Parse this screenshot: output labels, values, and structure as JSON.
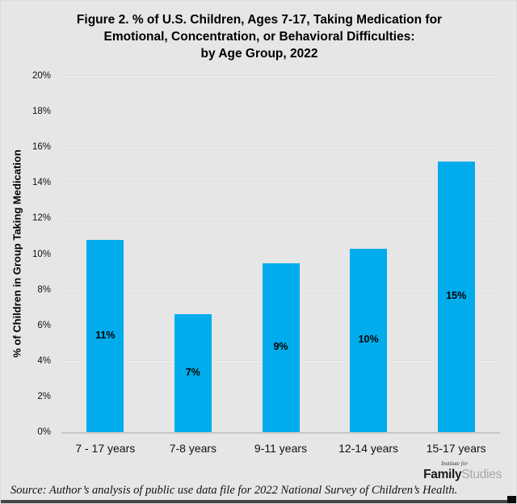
{
  "title": {
    "lines": [
      "Figure 2. % of U.S. Children, Ages 7-17, Taking Medication for",
      "Emotional, Concentration, or Behavioral Difficulties:",
      "by Age Group, 2022"
    ]
  },
  "chart_data": {
    "type": "bar",
    "title": "Figure 2. % of U.S. Children, Ages 7-17, Taking Medication for Emotional, Concentration, or Behavioral Difficulties: by Age Group, 2022",
    "categories": [
      "7 - 17 years",
      "7-8 years",
      "9-11 years",
      "12-14 years",
      "15-17 years"
    ],
    "values": [
      10.8,
      6.6,
      9.5,
      10.3,
      15.2
    ],
    "bar_labels": [
      "11%",
      "7%",
      "9%",
      "10%",
      "15%"
    ],
    "xlabel": "",
    "ylabel": "% of Children in Group Taking Medication",
    "ylim": [
      0,
      20
    ],
    "ytick_step": 2,
    "ytick_suffix": "%",
    "grid": true,
    "legend": "none",
    "bar_color": "#00ACEC",
    "label_color": "#000000",
    "background_color": "#e7e6e6"
  },
  "source_note": "Source: Author’s analysis of public use data file for 2022 National Survey of Children’s Health.",
  "logo": {
    "top_text": "Institute for",
    "name_bold": "Family",
    "name_light": "Studies"
  }
}
